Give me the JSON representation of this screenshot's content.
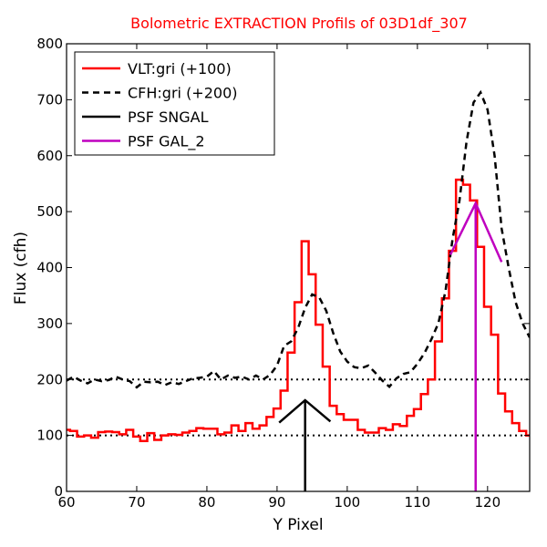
{
  "chart_data": {
    "type": "line",
    "title": "Bolometric EXTRACTION Profils of 03D1df_307",
    "xlabel": "Y Pixel",
    "ylabel": "Flux (cfh)",
    "xlim": [
      60,
      126
    ],
    "ylim": [
      0,
      800
    ],
    "xticks": [
      60,
      70,
      80,
      90,
      100,
      110,
      120
    ],
    "yticks": [
      0,
      100,
      200,
      300,
      400,
      500,
      600,
      700,
      800
    ],
    "legend_position": "top-left",
    "grid": false,
    "series": [
      {
        "name": "VLT:gri (+100)",
        "style": "steps",
        "color": "#ff0000",
        "x": [
          60,
          61,
          62,
          63,
          64,
          65,
          66,
          67,
          68,
          69,
          70,
          71,
          72,
          73,
          74,
          75,
          76,
          77,
          78,
          79,
          80,
          81,
          82,
          83,
          84,
          85,
          86,
          87,
          88,
          89,
          90,
          91,
          92,
          93,
          94,
          95,
          96,
          97,
          98,
          99,
          100,
          101,
          102,
          103,
          104,
          105,
          106,
          107,
          108,
          109,
          110,
          111,
          112,
          113,
          114,
          115,
          116,
          117,
          118,
          119,
          120,
          121,
          122,
          123,
          124,
          125,
          126
        ],
        "y": [
          110,
          108,
          98,
          100,
          96,
          106,
          107,
          106,
          102,
          110,
          98,
          90,
          104,
          92,
          100,
          102,
          101,
          105,
          108,
          113,
          112,
          112,
          102,
          105,
          118,
          108,
          122,
          112,
          118,
          133,
          148,
          180,
          248,
          338,
          447,
          388,
          298,
          223,
          153,
          138,
          128,
          128,
          110,
          105,
          105,
          113,
          110,
          120,
          117,
          135,
          147,
          174,
          200,
          268,
          345,
          430,
          557,
          548,
          520,
          437,
          330,
          280,
          175,
          143,
          122,
          108,
          100
        ]
      },
      {
        "name": "CFH:gri (+200)",
        "style": "dashed",
        "color": "#000000",
        "x": [
          60,
          61,
          62,
          63,
          64,
          65,
          66,
          67,
          68,
          69,
          70,
          71,
          72,
          73,
          74,
          75,
          76,
          77,
          78,
          79,
          80,
          81,
          82,
          83,
          84,
          85,
          86,
          87,
          88,
          89,
          90,
          91,
          92,
          93,
          94,
          95,
          96,
          97,
          98,
          99,
          100,
          101,
          102,
          103,
          104,
          105,
          106,
          107,
          108,
          109,
          110,
          111,
          112,
          113,
          114,
          115,
          116,
          117,
          118,
          119,
          120,
          121,
          122,
          123,
          124,
          125,
          126
        ],
        "y": [
          198,
          205,
          198,
          193,
          200,
          197,
          199,
          205,
          200,
          197,
          186,
          196,
          195,
          196,
          190,
          195,
          192,
          197,
          202,
          203,
          205,
          215,
          200,
          207,
          203,
          205,
          200,
          207,
          200,
          208,
          225,
          260,
          268,
          292,
          328,
          352,
          347,
          323,
          283,
          250,
          232,
          222,
          220,
          225,
          212,
          198,
          187,
          202,
          210,
          213,
          228,
          247,
          272,
          301,
          358,
          450,
          520,
          625,
          695,
          713,
          682,
          600,
          470,
          400,
          338,
          300,
          275
        ]
      },
      {
        "name": "PSF SNGAL",
        "style": "solid",
        "color": "#000000",
        "x": [
          90.3,
          94,
          97.6
        ],
        "y": [
          123,
          163,
          125
        ],
        "marker": {
          "x": 94,
          "y": [
            0,
            163
          ]
        }
      },
      {
        "name": "PSF GAL_2",
        "style": "solid",
        "color": "#bf00bf",
        "x": [
          114.7,
          118.3,
          122
        ],
        "y": [
          423,
          515,
          410
        ],
        "marker": {
          "x": 118.3,
          "y": [
            0,
            515
          ]
        }
      }
    ],
    "hlines": [
      {
        "y": 100,
        "style": "dotted",
        "color": "#000000"
      },
      {
        "y": 200,
        "style": "dotted",
        "color": "#000000"
      }
    ]
  }
}
